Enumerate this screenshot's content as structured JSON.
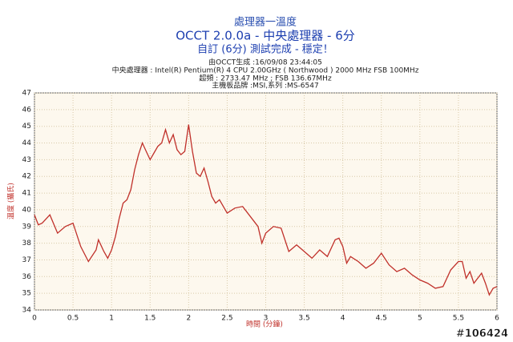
{
  "chart_data": {
    "type": "line",
    "title": "OCCT 2.0.0a - 中央處理器 - 6分",
    "supertitle": "處理器一溫度",
    "subtitle": "自訂 (6分) 測試完成 - 穩定！",
    "info": [
      "由OCCT生成 :16/09/08 23:44:05",
      "中央處理器 : Intel(R) Pentium(R) 4 CPU 2.00GHz ( Northwood ) 2000 MHz FSB 100MHz",
      "超頻 : 2733.47 MHz ; FSB 136.67MHz",
      "主機板品牌 :MSI,系列 :MS-6547"
    ],
    "xlabel": "時間 (分鐘)",
    "ylabel": "溫度 (攝氏)",
    "watermark": "#106424",
    "x": [
      0,
      0.05,
      0.1,
      0.2,
      0.3,
      0.4,
      0.5,
      0.6,
      0.7,
      0.8,
      0.83,
      0.9,
      0.95,
      1.0,
      1.05,
      1.1,
      1.15,
      1.2,
      1.25,
      1.3,
      1.35,
      1.4,
      1.45,
      1.5,
      1.55,
      1.6,
      1.65,
      1.7,
      1.75,
      1.8,
      1.85,
      1.9,
      1.95,
      2.0,
      2.05,
      2.1,
      2.15,
      2.2,
      2.25,
      2.3,
      2.35,
      2.4,
      2.5,
      2.6,
      2.7,
      2.8,
      2.9,
      2.95,
      3.0,
      3.1,
      3.2,
      3.3,
      3.4,
      3.5,
      3.6,
      3.7,
      3.8,
      3.9,
      3.95,
      4.0,
      4.05,
      4.1,
      4.2,
      4.3,
      4.4,
      4.5,
      4.6,
      4.7,
      4.8,
      4.9,
      5.0,
      5.1,
      5.2,
      5.3,
      5.4,
      5.5,
      5.55,
      5.6,
      5.65,
      5.7,
      5.8,
      5.85,
      5.9,
      5.95,
      6.0
    ],
    "series": [
      {
        "color": "#c0302a",
        "values": [
          39.7,
          39.1,
          39.2,
          39.7,
          38.6,
          39.0,
          39.2,
          37.8,
          36.9,
          37.6,
          38.2,
          37.5,
          37.1,
          37.6,
          38.4,
          39.5,
          40.4,
          40.6,
          41.2,
          42.4,
          43.3,
          44.0,
          43.5,
          43.0,
          43.4,
          43.8,
          44.0,
          44.8,
          44.0,
          44.5,
          43.6,
          43.3,
          43.5,
          45.1,
          43.5,
          42.2,
          42.0,
          42.5,
          41.7,
          40.8,
          40.4,
          40.6,
          39.8,
          40.1,
          40.2,
          39.6,
          39.0,
          38.0,
          38.6,
          39.0,
          38.9,
          37.5,
          37.9,
          37.5,
          37.1,
          37.6,
          37.2,
          38.2,
          38.3,
          37.8,
          36.8,
          37.2,
          36.9,
          36.5,
          36.8,
          37.4,
          36.7,
          36.3,
          36.5,
          36.1,
          35.8,
          35.6,
          35.3,
          35.4,
          36.4,
          36.9,
          36.9,
          35.9,
          36.3,
          35.6,
          36.2,
          35.6,
          34.9,
          35.3,
          35.4
        ]
      }
    ],
    "xlim": [
      0,
      6
    ],
    "ylim": [
      34,
      47
    ],
    "xticks": [
      0,
      0.5,
      1,
      1.5,
      2,
      2.5,
      3,
      3.5,
      4,
      4.5,
      5,
      5.5,
      6
    ],
    "yticks": [
      34,
      35,
      36,
      37,
      38,
      39,
      40,
      41,
      42,
      43,
      44,
      45,
      46,
      47
    ],
    "grid": true,
    "plot_background": "#fdf8ee",
    "grid_color": "#d8c9a8"
  }
}
